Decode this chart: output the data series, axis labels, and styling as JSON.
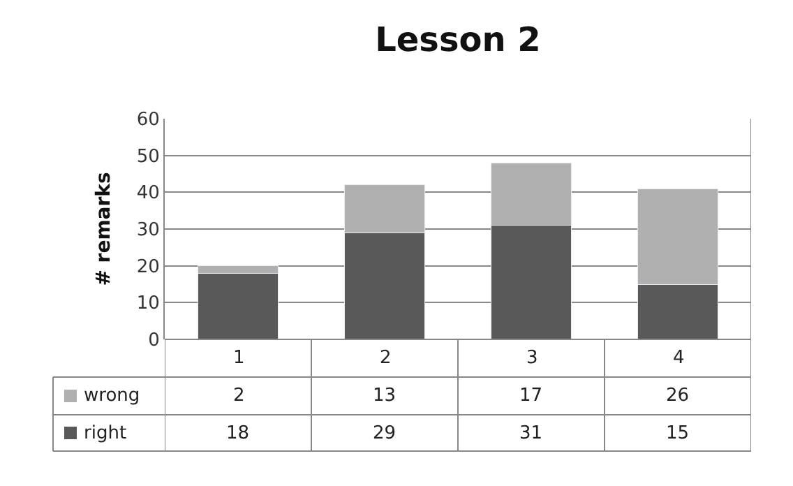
{
  "chart_data": {
    "type": "bar",
    "title": "Lesson 2",
    "ylabel": "# remarks",
    "categories": [
      "1",
      "2",
      "3",
      "4"
    ],
    "series": [
      {
        "name": "right",
        "color": "#595959",
        "values": [
          18,
          29,
          31,
          15
        ]
      },
      {
        "name": "wrong",
        "color": "#b0b0b0",
        "values": [
          2,
          13,
          17,
          26
        ]
      }
    ],
    "stacked": true,
    "ylim": [
      0,
      60
    ],
    "yticks": [
      0,
      10,
      20,
      30,
      40,
      50,
      60
    ],
    "grid": "y",
    "legend": "bottom",
    "data_labels": true
  }
}
